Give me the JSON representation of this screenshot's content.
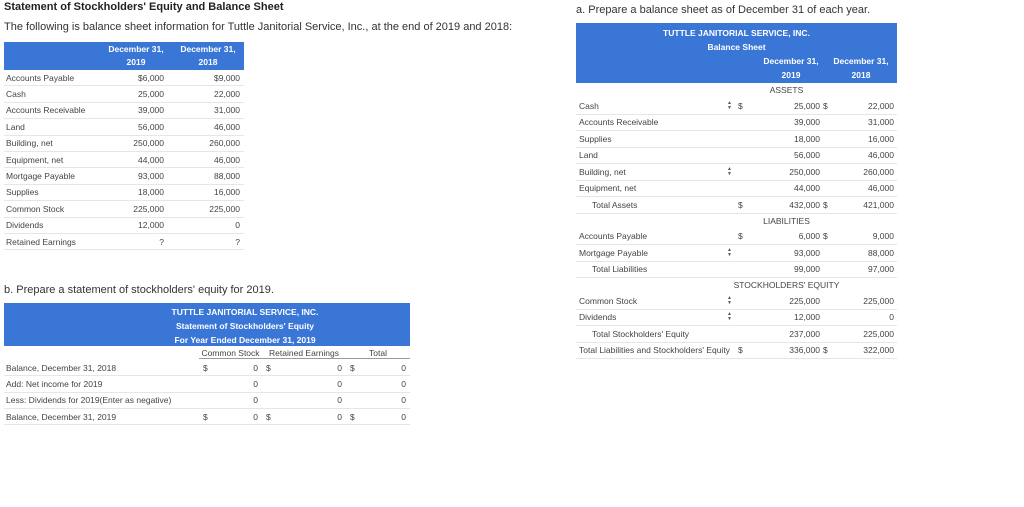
{
  "title": "Statement of Stockholders' Equity and Balance Sheet",
  "intro": "The following is balance sheet information for Tuttle Janitorial Service, Inc., at the end of 2019 and 2018:",
  "given": {
    "col1a": "December 31,",
    "col1b": "2019",
    "col2a": "December 31,",
    "col2b": "2018",
    "rows": [
      {
        "label": "Accounts Payable",
        "v2019": "$6,000",
        "v2018": "$9,000"
      },
      {
        "label": "Cash",
        "v2019": "25,000",
        "v2018": "22,000"
      },
      {
        "label": "Accounts Receivable",
        "v2019": "39,000",
        "v2018": "31,000"
      },
      {
        "label": "Land",
        "v2019": "56,000",
        "v2018": "46,000"
      },
      {
        "label": "Building, net",
        "v2019": "250,000",
        "v2018": "260,000"
      },
      {
        "label": "Equipment, net",
        "v2019": "44,000",
        "v2018": "46,000"
      },
      {
        "label": "Mortgage Payable",
        "v2019": "93,000",
        "v2018": "88,000"
      },
      {
        "label": "Supplies",
        "v2019": "18,000",
        "v2018": "16,000"
      },
      {
        "label": "Common Stock",
        "v2019": "225,000",
        "v2018": "225,000"
      },
      {
        "label": "Dividends",
        "v2019": "12,000",
        "v2018": "0"
      },
      {
        "label": "Retained Earnings",
        "v2019": "?",
        "v2018": "?"
      }
    ]
  },
  "partb": {
    "prompt": "b. Prepare a statement of stockholders' equity for 2019.",
    "h1": "TUTTLE JANITORIAL SERVICE, INC.",
    "h2": "Statement of Stockholders' Equity",
    "h3": "For Year Ended December 31, 2019",
    "col_cs": "Common Stock",
    "col_re": "Retained Earnings",
    "col_total": "Total",
    "rows": [
      {
        "label": "Balance, December 31, 2018",
        "cs_sign": "$",
        "cs": "0",
        "re_sign": "$",
        "re": "0",
        "t_sign": "$",
        "total": "0"
      },
      {
        "label": "Add: Net income for 2019",
        "cs_sign": "",
        "cs": "0",
        "re_sign": "",
        "re": "0",
        "t_sign": "",
        "total": "0"
      },
      {
        "label": "Less: Dividends for 2019(Enter as negative)",
        "cs_sign": "",
        "cs": "0",
        "re_sign": "",
        "re": "0",
        "t_sign": "",
        "total": "0"
      },
      {
        "label": "Balance, December 31, 2019",
        "cs_sign": "$",
        "cs": "0",
        "re_sign": "$",
        "re": "0",
        "t_sign": "$",
        "total": "0"
      }
    ]
  },
  "parta": {
    "prompt": "a. Prepare a balance sheet as of December 31 of each year.",
    "h1": "TUTTLE JANITORIAL SERVICE, INC.",
    "h2": "Balance Sheet",
    "d1a": "December 31,",
    "d1b": "2019",
    "d2a": "December 31,",
    "d2b": "2018",
    "assets_label": "ASSETS",
    "liab_label": "LIABILITIES",
    "equity_label": "STOCKHOLDERS' EQUITY",
    "assets": [
      {
        "label": "Cash",
        "dropdown": true,
        "s1": "$",
        "v1": "25,000",
        "s2": "$",
        "v2": "22,000"
      },
      {
        "label": "Accounts Receivable",
        "dropdown": false,
        "s1": "",
        "v1": "39,000",
        "s2": "",
        "v2": "31,000"
      },
      {
        "label": "Supplies",
        "dropdown": false,
        "s1": "",
        "v1": "18,000",
        "s2": "",
        "v2": "16,000"
      },
      {
        "label": "Land",
        "dropdown": false,
        "s1": "",
        "v1": "56,000",
        "s2": "",
        "v2": "46,000"
      },
      {
        "label": "Building, net",
        "dropdown": true,
        "s1": "",
        "v1": "250,000",
        "s2": "",
        "v2": "260,000"
      },
      {
        "label": "Equipment, net",
        "dropdown": false,
        "s1": "",
        "v1": "44,000",
        "s2": "",
        "v2": "46,000"
      },
      {
        "label": "Total Assets",
        "dropdown": false,
        "indent": true,
        "s1": "$",
        "v1": "432,000",
        "s2": "$",
        "v2": "421,000"
      }
    ],
    "liabilities": [
      {
        "label": "Accounts Payable",
        "dropdown": false,
        "s1": "$",
        "v1": "6,000",
        "s2": "$",
        "v2": "9,000"
      },
      {
        "label": "Mortgage Payable",
        "dropdown": true,
        "s1": "",
        "v1": "93,000",
        "s2": "",
        "v2": "88,000"
      },
      {
        "label": "Total Liabilities",
        "dropdown": false,
        "indent": true,
        "s1": "",
        "v1": "99,000",
        "s2": "",
        "v2": "97,000"
      }
    ],
    "equity": [
      {
        "label": "Common Stock",
        "dropdown": true,
        "s1": "",
        "v1": "225,000",
        "s2": "",
        "v2": "225,000"
      },
      {
        "label": "Dividends",
        "dropdown": true,
        "s1": "",
        "v1": "12,000",
        "s2": "",
        "v2": "0"
      },
      {
        "label": "Total Stockholders' Equity",
        "dropdown": false,
        "indent": true,
        "s1": "",
        "v1": "237,000",
        "s2": "",
        "v2": "225,000"
      },
      {
        "label": "Total Liabilities and Stockholders' Equity",
        "dropdown": false,
        "s1": "$",
        "v1": "336,000",
        "s2": "$",
        "v2": "322,000"
      }
    ]
  },
  "colors": {
    "header_blue": "#3a76d6"
  },
  "icons": {
    "dropdown": "updown-arrow-icon"
  }
}
